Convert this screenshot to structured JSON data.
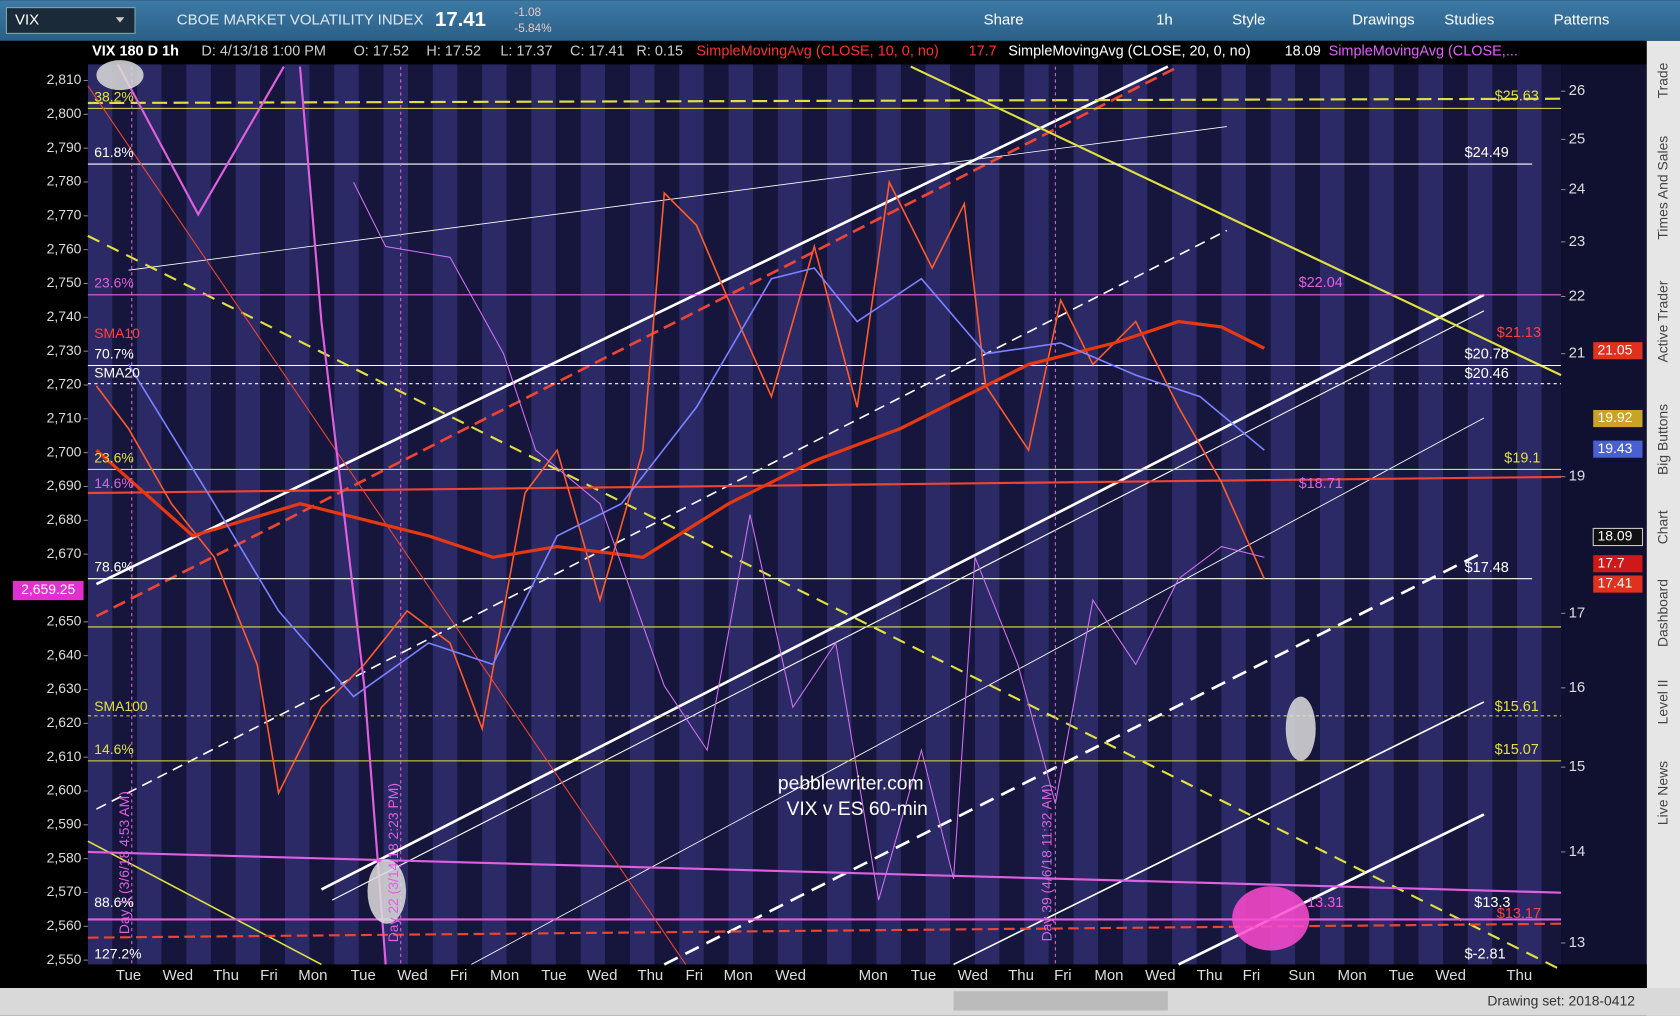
{
  "toolbar": {
    "symbol": "VIX",
    "description": "CBOE MARKET VOLATILITY INDEX",
    "last": "17.41",
    "change": "-1.08",
    "change_pct": "-5.84%",
    "buttons": [
      "Share",
      "1h",
      "Style",
      "Drawings",
      "Studies",
      "Patterns"
    ]
  },
  "header": {
    "items": [
      "VIX 180 D 1h",
      "D: 4/13/18 1:00 PM",
      "O: 17.52",
      "H: 17.52",
      "L: 17.37",
      "C: 17.41",
      "R: 0.15",
      "SimpleMovingAvg (CLOSE, 10, 0, no)",
      "17.7",
      "SimpleMovingAvg (CLOSE, 20, 0, no)",
      "18.09",
      "SimpleMovingAvg (CLOSE,..."
    ]
  },
  "chart": {
    "left_axis": {
      "lim": [
        2550,
        2810
      ],
      "ticks": [
        {
          "value": 2550,
          "label": "2,550"
        },
        {
          "value": 2560,
          "label": "2,560"
        },
        {
          "value": 2570,
          "label": "2,570"
        },
        {
          "value": 2580,
          "label": "2,580"
        },
        {
          "value": 2590,
          "label": "2,590"
        },
        {
          "value": 2600,
          "label": "2,600"
        },
        {
          "value": 2610,
          "label": "2,610"
        },
        {
          "value": 2620,
          "label": "2,620"
        },
        {
          "value": 2630,
          "label": "2,630"
        },
        {
          "value": 2640,
          "label": "2,640"
        },
        {
          "value": 2650,
          "label": "2,650"
        },
        {
          "value": 2670,
          "label": "2,670"
        },
        {
          "value": 2680,
          "label": "2,680"
        },
        {
          "value": 2690,
          "label": "2,690"
        },
        {
          "value": 2700,
          "label": "2,700"
        },
        {
          "value": 2710,
          "label": "2,710"
        },
        {
          "value": 2720,
          "label": "2,720"
        },
        {
          "value": 2730,
          "label": "2,730"
        },
        {
          "value": 2740,
          "label": "2,740"
        },
        {
          "value": 2750,
          "label": "2,750"
        },
        {
          "value": 2760,
          "label": "2,760"
        },
        {
          "value": 2770,
          "label": "2,770"
        },
        {
          "value": 2780,
          "label": "2,780"
        },
        {
          "value": 2790,
          "label": "2,790"
        },
        {
          "value": 2800,
          "label": "2,800"
        },
        {
          "value": 2810,
          "label": "2,810"
        }
      ]
    },
    "right_axis": {
      "log": true,
      "lim": [
        13,
        26
      ],
      "ticks": [
        13,
        14,
        15,
        16,
        17,
        19,
        21,
        22,
        23,
        24,
        25,
        26
      ]
    },
    "x_labels": [
      "Tue",
      "Wed",
      "Thu",
      "Fri",
      "Mon",
      "Tue",
      "Wed",
      "Fri",
      "Mon",
      "Tue",
      "Wed",
      "Thu",
      "Fri",
      "Mon",
      "Wed",
      "Mon",
      "Tue",
      "Wed",
      "Thu",
      "Fri",
      "Mon",
      "Wed",
      "Thu",
      "Fri",
      "Sun",
      "Mon",
      "Tue",
      "Wed",
      "Thu"
    ],
    "fib_labels": [
      "38.2%",
      "61.8%",
      "23.6%",
      "SMA10",
      "70.7%",
      "SMA20",
      "23.6%",
      "14.6%",
      "78.6%",
      "SMA100",
      "14.6%",
      "88.6%",
      "127.2%"
    ],
    "level_labels": [
      "$25.63",
      "$24.49",
      "$22.04",
      "$21.13",
      "$20.78",
      "$20.46",
      "$19.1",
      "$18.71",
      "$17.48",
      "$15.61",
      "$15.07",
      "$13.3",
      "13.31",
      "$13.17",
      "$-2.81"
    ],
    "price_tags": [
      {
        "value": 21.05,
        "color": "#e0301e"
      },
      {
        "value": 19.92,
        "color": "#c9a227"
      },
      {
        "value": 19.43,
        "color": "#4a5fd0"
      },
      {
        "value": 18.09,
        "color": "#111111"
      },
      {
        "value": 17.7,
        "color": "#d01818"
      },
      {
        "value": 17.41,
        "color": "#e0301e"
      }
    ],
    "left_tag": {
      "value": 2659.25,
      "label": "2,659.25"
    },
    "watermark": [
      "pebblewriter.com",
      "VIX v ES 60-min"
    ],
    "annotations": [
      "Day 1 (3/6/18 4:53 AM)",
      "Day 22 (3/14/18 2:23 PM)",
      "Day 39 (4/6/18 11:32 AM)"
    ]
  },
  "sidebar": [
    "Trade",
    "Times And Sales",
    "Active Trader",
    "Big Buttons",
    "Chart",
    "Dashboard",
    "Level II",
    "Live News"
  ],
  "footer": {
    "drawing_set": "Drawing set: 2018-0412"
  }
}
